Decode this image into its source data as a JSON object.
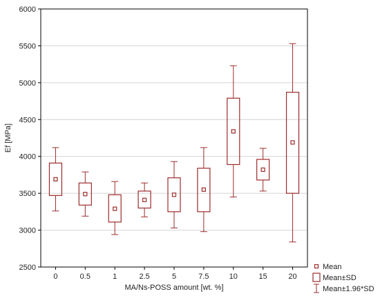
{
  "chart_data": {
    "type": "box",
    "xlabel": "MA/Ns-POSS amount [wt. %]",
    "ylabel": "Ef [MPa]",
    "ylim": [
      2500,
      6000
    ],
    "yticks": [
      2500,
      3000,
      3500,
      4000,
      4500,
      5000,
      5500,
      6000
    ],
    "grid": true,
    "legend_position": "bottom-right-outside",
    "color": "#9c2a2a",
    "categories": [
      "0",
      "0.5",
      "1",
      "2.5",
      "5",
      "7.5",
      "10",
      "15",
      "20"
    ],
    "mean": [
      3690,
      3490,
      3290,
      3410,
      3480,
      3550,
      4340,
      3820,
      4190
    ],
    "sd_low": [
      3470,
      3340,
      3110,
      3300,
      3250,
      3250,
      3890,
      3680,
      3500
    ],
    "sd_high": [
      3910,
      3640,
      3480,
      3530,
      3710,
      3840,
      4790,
      3960,
      4870
    ],
    "ci_low": [
      3260,
      3190,
      2940,
      3180,
      3030,
      2980,
      3450,
      3530,
      2840
    ],
    "ci_high": [
      4120,
      3790,
      3660,
      3640,
      3930,
      4120,
      5230,
      4110,
      5530
    ],
    "legend": [
      {
        "key": "mean",
        "label": "Mean"
      },
      {
        "key": "sd",
        "label": "Mean±SD"
      },
      {
        "key": "ci",
        "label": "Mean±1.96*SD"
      }
    ]
  }
}
